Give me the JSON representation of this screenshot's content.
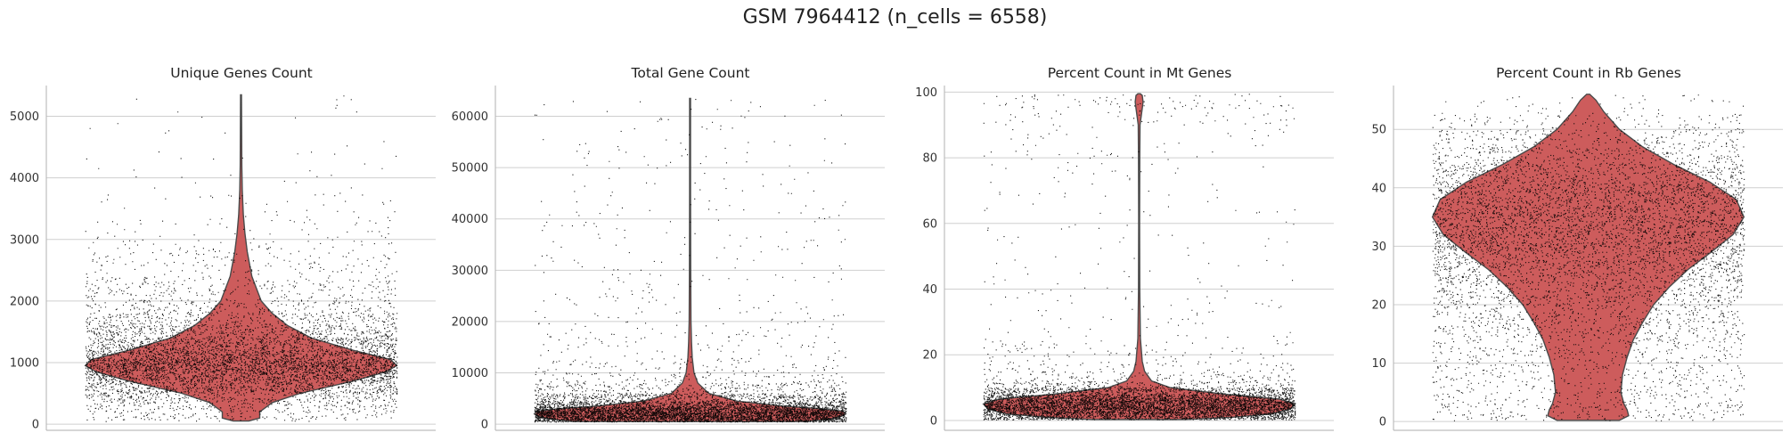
{
  "figure": {
    "title": "GSM 7964412 (n_cells = 6558)",
    "violin_color": "#cd5c5c",
    "violin_edge": "#4a4a4a",
    "point_color": "#000000",
    "grid": true
  },
  "chart_data": [
    {
      "type": "violin",
      "title": "Unique Genes Count",
      "xlabel": "",
      "ylabel": "",
      "ylim": [
        -100,
        5500
      ],
      "yticks": [
        0,
        1000,
        2000,
        3000,
        4000,
        5000
      ],
      "tick_labels": [
        "0",
        "1000",
        "2000",
        "3000",
        "4000",
        "5000"
      ],
      "n_points": 6558,
      "summary": {
        "min": 50,
        "median": 1000,
        "max": 5350
      },
      "density": [
        [
          50,
          0.05
        ],
        [
          100,
          0.12
        ],
        [
          200,
          0.12
        ],
        [
          350,
          0.2
        ],
        [
          500,
          0.38
        ],
        [
          700,
          0.72
        ],
        [
          850,
          0.93
        ],
        [
          950,
          1.0
        ],
        [
          1050,
          0.96
        ],
        [
          1200,
          0.72
        ],
        [
          1400,
          0.45
        ],
        [
          1600,
          0.3
        ],
        [
          1800,
          0.2
        ],
        [
          2000,
          0.13
        ],
        [
          2400,
          0.07
        ],
        [
          2800,
          0.04
        ],
        [
          3100,
          0.025
        ],
        [
          3400,
          0.015
        ],
        [
          3800,
          0.008
        ],
        [
          4200,
          0.005
        ],
        [
          5350,
          0.003
        ]
      ]
    },
    {
      "type": "violin",
      "title": "Total Gene Count",
      "xlabel": "",
      "ylabel": "",
      "ylim": [
        -1200,
        66000
      ],
      "yticks": [
        0,
        10000,
        20000,
        30000,
        40000,
        50000,
        60000
      ],
      "tick_labels": [
        "0",
        "10000",
        "20000",
        "30000",
        "40000",
        "50000",
        "60000"
      ],
      "n_points": 6558,
      "summary": {
        "min": 500,
        "median": 2500,
        "max": 63500
      },
      "density": [
        [
          500,
          0.75
        ],
        [
          1000,
          0.9
        ],
        [
          1500,
          0.97
        ],
        [
          2000,
          1.0
        ],
        [
          2500,
          0.98
        ],
        [
          3000,
          0.85
        ],
        [
          3500,
          0.6
        ],
        [
          4500,
          0.3
        ],
        [
          6000,
          0.12
        ],
        [
          8000,
          0.05
        ],
        [
          10000,
          0.025
        ],
        [
          13000,
          0.014
        ],
        [
          16000,
          0.009
        ],
        [
          20000,
          0.006
        ],
        [
          30000,
          0.004
        ],
        [
          45000,
          0.003
        ],
        [
          63500,
          0.003
        ]
      ]
    },
    {
      "type": "violin",
      "title": "Percent Count in Mt Genes",
      "xlabel": "",
      "ylabel": "",
      "ylim": [
        -3,
        102
      ],
      "yticks": [
        0,
        20,
        40,
        60,
        80,
        100
      ],
      "tick_labels": [
        "0",
        "20",
        "40",
        "60",
        "80",
        "100"
      ],
      "n_points": 6558,
      "summary": {
        "min": 0.3,
        "median": 5,
        "max": 99.5
      },
      "density": [
        [
          0.3,
          0.3
        ],
        [
          1,
          0.6
        ],
        [
          2,
          0.85
        ],
        [
          3.5,
          0.97
        ],
        [
          5,
          1.0
        ],
        [
          6.5,
          0.9
        ],
        [
          8,
          0.55
        ],
        [
          10,
          0.2
        ],
        [
          12,
          0.08
        ],
        [
          15,
          0.035
        ],
        [
          18,
          0.02
        ],
        [
          25,
          0.008
        ],
        [
          40,
          0.004
        ],
        [
          60,
          0.003
        ],
        [
          80,
          0.004
        ],
        [
          90,
          0.006
        ],
        [
          95,
          0.02
        ],
        [
          97,
          0.025
        ],
        [
          99,
          0.02
        ],
        [
          99.5,
          0.008
        ]
      ]
    },
    {
      "type": "violin",
      "title": "Percent Count in Rb Genes",
      "xlabel": "",
      "ylabel": "",
      "ylim": [
        -1.5,
        57.5
      ],
      "yticks": [
        0,
        10,
        20,
        30,
        40,
        50
      ],
      "tick_labels": [
        "0",
        "10",
        "20",
        "30",
        "40",
        "50"
      ],
      "n_points": 6558,
      "summary": {
        "min": 0.2,
        "median": 35,
        "max": 56
      },
      "density": [
        [
          0.2,
          0.2
        ],
        [
          1,
          0.26
        ],
        [
          2,
          0.25
        ],
        [
          3,
          0.23
        ],
        [
          5,
          0.21
        ],
        [
          8,
          0.22
        ],
        [
          11,
          0.25
        ],
        [
          14,
          0.29
        ],
        [
          17,
          0.35
        ],
        [
          20,
          0.42
        ],
        [
          23,
          0.52
        ],
        [
          26,
          0.64
        ],
        [
          29,
          0.79
        ],
        [
          32,
          0.93
        ],
        [
          35,
          1.0
        ],
        [
          38,
          0.95
        ],
        [
          41,
          0.78
        ],
        [
          44,
          0.55
        ],
        [
          47,
          0.35
        ],
        [
          50,
          0.2
        ],
        [
          53,
          0.1
        ],
        [
          55,
          0.05
        ],
        [
          56,
          0.01
        ]
      ]
    }
  ]
}
